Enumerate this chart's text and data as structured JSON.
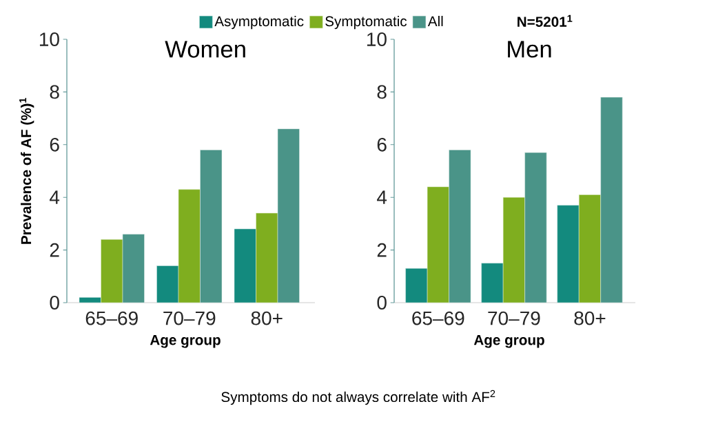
{
  "chart_data": [
    {
      "type": "bar",
      "title": "Women",
      "xlabel": "Age group",
      "ylabel": "Prevalence of AF (%)$^{1}$",
      "categories": [
        "65–69",
        "70–79",
        "80+"
      ],
      "series": [
        {
          "name": "Asymptomatic",
          "color": "#138a7e",
          "values": [
            0.2,
            1.4,
            2.8
          ]
        },
        {
          "name": "Symptomatic",
          "color": "#7fae1f",
          "values": [
            2.4,
            4.3,
            3.4
          ]
        },
        {
          "name": "All",
          "color": "#4a9488",
          "values": [
            2.6,
            5.8,
            6.6
          ]
        }
      ],
      "ylim": [
        0,
        10
      ],
      "yticks": [
        0,
        2,
        4,
        6,
        8,
        10
      ],
      "legend": "top",
      "annotations": [
        "N=5201$^{1}$",
        "Symptoms do not always correlate with AF$^{2}$"
      ]
    },
    {
      "type": "bar",
      "title": "Men",
      "xlabel": "Age group",
      "categories": [
        "65–69",
        "70–79",
        "80+"
      ],
      "series": [
        {
          "color": "#138a7e",
          "values": [
            1.3,
            1.5,
            3.7
          ]
        },
        {
          "color": "#7fae1f",
          "values": [
            4.4,
            4.0,
            4.1
          ]
        },
        {
          "color": "#4a9488",
          "values": [
            5.8,
            5.7,
            7.8
          ]
        }
      ],
      "ylim": [
        0,
        10
      ],
      "yticks": [
        0,
        2,
        4,
        6,
        8,
        10
      ]
    }
  ]
}
